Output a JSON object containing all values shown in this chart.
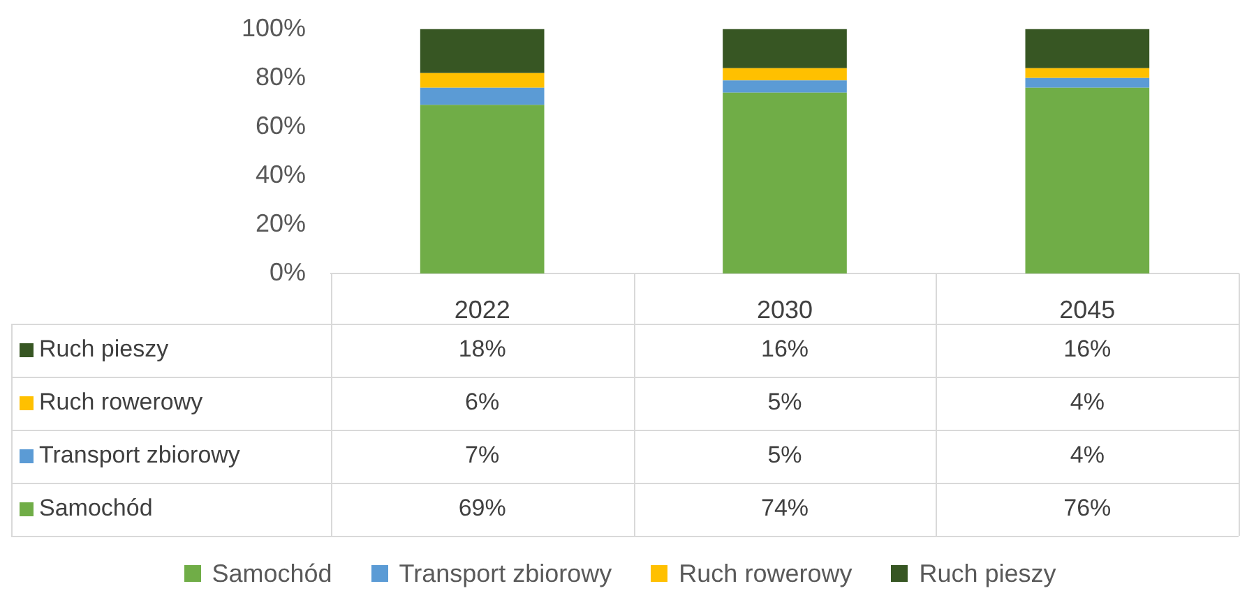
{
  "chart_data": {
    "type": "bar",
    "stacked": true,
    "categories": [
      "2022",
      "2030",
      "2045"
    ],
    "series": [
      {
        "name": "Samochód",
        "color": "#70ad47",
        "values": [
          69,
          74,
          76
        ],
        "value_labels": [
          "69%",
          "74%",
          "76%"
        ]
      },
      {
        "name": "Transport zbiorowy",
        "color": "#5b9bd5",
        "values": [
          7,
          5,
          4
        ],
        "value_labels": [
          "7%",
          "5%",
          "4%"
        ]
      },
      {
        "name": "Ruch rowerowy",
        "color": "#ffc000",
        "values": [
          6,
          5,
          4
        ],
        "value_labels": [
          "6%",
          "5%",
          "4%"
        ]
      },
      {
        "name": "Ruch pieszy",
        "color": "#375623",
        "values": [
          18,
          16,
          16
        ],
        "value_labels": [
          "18%",
          "16%",
          "16%"
        ]
      }
    ],
    "ylim": [
      0,
      100
    ],
    "yticks": [
      {
        "value": 0,
        "label": "0%"
      },
      {
        "value": 20,
        "label": "20%"
      },
      {
        "value": 40,
        "label": "40%"
      },
      {
        "value": 60,
        "label": "60%"
      },
      {
        "value": 80,
        "label": "80%"
      },
      {
        "value": 100,
        "label": "100%"
      }
    ],
    "grid": false,
    "legend": "bottom"
  }
}
